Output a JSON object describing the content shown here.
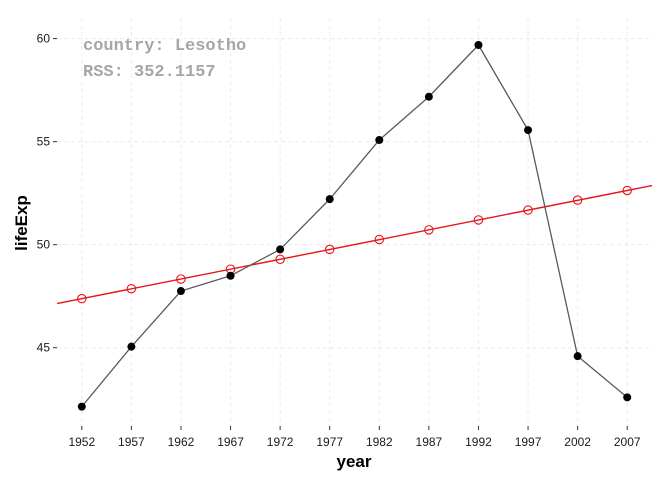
{
  "chart_data": {
    "type": "line",
    "xlabel": "year",
    "ylabel": "lifeExp",
    "xlim": [
      1949.5,
      2009.5
    ],
    "ylim": [
      41.2,
      61.0
    ],
    "x_ticks": [
      1952,
      1957,
      1962,
      1967,
      1972,
      1977,
      1982,
      1987,
      1992,
      1997,
      2002,
      2007
    ],
    "y_ticks": [
      45,
      50,
      55,
      60
    ],
    "grid": true,
    "annotations": {
      "country_line": "country: Lesotho",
      "rss_line": "RSS: 352.1157"
    },
    "series": [
      {
        "role": "observed",
        "color": "#5a5a5a",
        "marker_color": "#000000",
        "x": [
          1952,
          1957,
          1962,
          1967,
          1972,
          1977,
          1982,
          1987,
          1992,
          1997,
          2002,
          2007
        ],
        "y": [
          42.14,
          45.05,
          47.75,
          48.49,
          49.77,
          52.21,
          55.08,
          57.18,
          59.69,
          55.56,
          44.59,
          42.59
        ]
      },
      {
        "role": "fitted",
        "color": "#e8141c",
        "x": [
          1952,
          1957,
          1962,
          1967,
          1972,
          1977,
          1982,
          1987,
          1992,
          1997,
          2002,
          2007
        ],
        "y": [
          47.38,
          47.86,
          48.33,
          48.81,
          49.29,
          49.77,
          50.25,
          50.72,
          51.2,
          51.68,
          52.16,
          52.63
        ],
        "line_extent": [
          1949.5,
          2009.5
        ]
      }
    ]
  }
}
